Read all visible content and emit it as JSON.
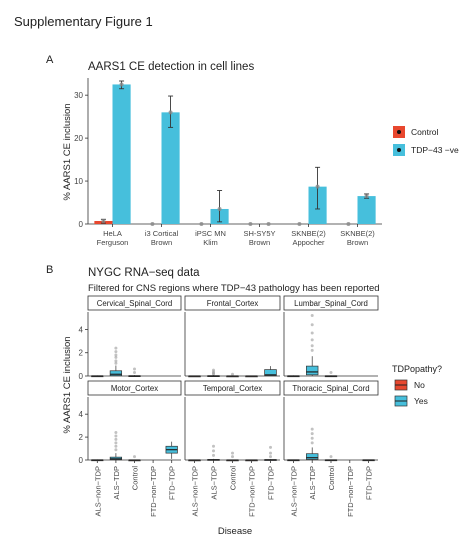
{
  "figure_title": "Supplementary Figure 1",
  "chart_data": [
    {
      "panel_label": "A",
      "type": "bar",
      "title": "AARS1 CE detection in cell lines",
      "ylabel": "% AARS1 CE inclusion",
      "xlabel": "",
      "ylim": [
        0,
        34
      ],
      "yticks": [
        0,
        10,
        20,
        30
      ],
      "categories": [
        "HeLA\nFerguson",
        "i3 Cortical\nBrown",
        "iPSC MN\nKlim",
        "SH-SY5Y\nBrown",
        "SKNBE(2)\nAppocher",
        "SKNBE(2)\nBrown"
      ],
      "legend_position": "right",
      "series": [
        {
          "name": "Control",
          "color": "#E8472E",
          "values": [
            0.7,
            0,
            0,
            0,
            0,
            0
          ],
          "error_low": [
            0.2,
            0,
            0,
            0,
            0,
            0
          ],
          "error_high": [
            1.1,
            0,
            0,
            0,
            0,
            0
          ]
        },
        {
          "name": "TDP−43 −ve",
          "color": "#46BFDC",
          "values": [
            32.5,
            26,
            3.5,
            0,
            8.7,
            6.5
          ],
          "error_low": [
            31.5,
            22.5,
            0.5,
            0,
            3.5,
            6.0
          ],
          "error_high": [
            33.3,
            29.8,
            7.8,
            0,
            13.2,
            7.0
          ]
        }
      ]
    },
    {
      "panel_label": "B",
      "type": "box",
      "title": "NYGC RNA−seq data",
      "subtitle": "Filtered for CNS regions where TDP−43 pathology has been reported",
      "ylabel": "% AARS1 CE inclusion",
      "xlabel": "Disease",
      "ylim": [
        0,
        5.5
      ],
      "yticks": [
        0,
        2,
        4
      ],
      "categories": [
        "ALS−non−TDP",
        "ALS−TDP",
        "Control",
        "FTD−non−TDP",
        "FTD−TDP"
      ],
      "legend_title": "TDPopathy?",
      "legend_position": "right",
      "groups": [
        {
          "name": "No",
          "color": "#E8472E"
        },
        {
          "name": "Yes",
          "color": "#46BFDC"
        }
      ],
      "facets": [
        {
          "name": "Cervical_Spinal_Cord",
          "boxes": [
            {
              "category": "ALS−non−TDP",
              "group": "No",
              "min": 0,
              "q1": 0,
              "median": 0,
              "q3": 0.02,
              "max": 0.05,
              "outliers": []
            },
            {
              "category": "ALS−TDP",
              "group": "Yes",
              "min": 0,
              "q1": 0.03,
              "median": 0.15,
              "q3": 0.45,
              "max": 0.9,
              "outliers": [
                1.1,
                1.3,
                1.6,
                1.8,
                2.1,
                2.4
              ]
            },
            {
              "category": "Control",
              "group": "No",
              "min": 0,
              "q1": 0,
              "median": 0,
              "q3": 0.03,
              "max": 0.08,
              "outliers": [
                0.3,
                0.6
              ]
            }
          ]
        },
        {
          "name": "Frontal_Cortex",
          "boxes": [
            {
              "category": "ALS−non−TDP",
              "group": "No",
              "min": 0,
              "q1": 0,
              "median": 0,
              "q3": 0.01,
              "max": 0.03,
              "outliers": []
            },
            {
              "category": "ALS−TDP",
              "group": "Yes",
              "min": 0,
              "q1": 0,
              "median": 0,
              "q3": 0.03,
              "max": 0.08,
              "outliers": [
                0.15,
                0.25,
                0.35,
                0.5
              ]
            },
            {
              "category": "Control",
              "group": "No",
              "min": 0,
              "q1": 0,
              "median": 0,
              "q3": 0.01,
              "max": 0.03,
              "outliers": [
                0.15
              ]
            },
            {
              "category": "FTD−non−TDP",
              "group": "No",
              "min": 0,
              "q1": 0,
              "median": 0,
              "q3": 0.01,
              "max": 0.02,
              "outliers": []
            },
            {
              "category": "FTD−TDP",
              "group": "Yes",
              "min": 0,
              "q1": 0.02,
              "median": 0.1,
              "q3": 0.55,
              "max": 0.85,
              "outliers": []
            }
          ]
        },
        {
          "name": "Lumbar_Spinal_Cord",
          "boxes": [
            {
              "category": "ALS−non−TDP",
              "group": "No",
              "min": 0,
              "q1": 0,
              "median": 0,
              "q3": 0.02,
              "max": 0.05,
              "outliers": []
            },
            {
              "category": "ALS−TDP",
              "group": "Yes",
              "min": 0,
              "q1": 0.1,
              "median": 0.35,
              "q3": 0.85,
              "max": 1.7,
              "outliers": [
                2.2,
                2.6,
                3.1,
                3.7,
                4.4,
                5.2
              ]
            },
            {
              "category": "Control",
              "group": "No",
              "min": 0,
              "q1": 0,
              "median": 0,
              "q3": 0.02,
              "max": 0.05,
              "outliers": [
                0.3
              ]
            }
          ]
        },
        {
          "name": "Motor_Cortex",
          "boxes": [
            {
              "category": "ALS−non−TDP",
              "group": "No",
              "min": 0,
              "q1": 0,
              "median": 0,
              "q3": 0.02,
              "max": 0.05,
              "outliers": []
            },
            {
              "category": "ALS−TDP",
              "group": "Yes",
              "min": 0,
              "q1": 0.02,
              "median": 0.1,
              "q3": 0.25,
              "max": 0.6,
              "outliers": [
                0.9,
                1.2,
                1.5,
                1.8,
                2.1,
                2.4
              ]
            },
            {
              "category": "Control",
              "group": "No",
              "min": 0,
              "q1": 0,
              "median": 0,
              "q3": 0.01,
              "max": 0.03,
              "outliers": [
                0.3
              ]
            },
            {
              "category": "FTD−TDP",
              "group": "Yes",
              "min": 0.1,
              "q1": 0.6,
              "median": 0.9,
              "q3": 1.2,
              "max": 1.6,
              "outliers": []
            }
          ]
        },
        {
          "name": "Temporal_Cortex",
          "boxes": [
            {
              "category": "ALS−non−TDP",
              "group": "No",
              "min": 0,
              "q1": 0,
              "median": 0,
              "q3": 0.01,
              "max": 0.03,
              "outliers": []
            },
            {
              "category": "ALS−TDP",
              "group": "Yes",
              "min": 0,
              "q1": 0,
              "median": 0.01,
              "q3": 0.05,
              "max": 0.1,
              "outliers": [
                0.4,
                0.8,
                1.2
              ]
            },
            {
              "category": "Control",
              "group": "No",
              "min": 0,
              "q1": 0,
              "median": 0,
              "q3": 0.01,
              "max": 0.03,
              "outliers": [
                0.3,
                0.6
              ]
            },
            {
              "category": "FTD−non−TDP",
              "group": "No",
              "min": 0,
              "q1": 0,
              "median": 0,
              "q3": 0.01,
              "max": 0.02,
              "outliers": []
            },
            {
              "category": "FTD−TDP",
              "group": "Yes",
              "min": 0,
              "q1": 0,
              "median": 0.01,
              "q3": 0.04,
              "max": 0.08,
              "outliers": [
                0.3,
                0.6,
                1.1
              ]
            }
          ]
        },
        {
          "name": "Thoracic_Spinal_Cord",
          "boxes": [
            {
              "category": "ALS−non−TDP",
              "group": "No",
              "min": 0,
              "q1": 0,
              "median": 0,
              "q3": 0.02,
              "max": 0.04,
              "outliers": []
            },
            {
              "category": "ALS−TDP",
              "group": "Yes",
              "min": 0,
              "q1": 0.05,
              "median": 0.2,
              "q3": 0.55,
              "max": 1.1,
              "outliers": [
                1.5,
                1.9,
                2.3,
                2.7
              ]
            },
            {
              "category": "Control",
              "group": "No",
              "min": 0,
              "q1": 0,
              "median": 0,
              "q3": 0.02,
              "max": 0.04,
              "outliers": [
                0.3
              ]
            },
            {
              "category": "FTD−TDP",
              "group": "Yes",
              "min": 0,
              "q1": 0,
              "median": 0,
              "q3": 0.02,
              "max": 0.04,
              "outliers": []
            }
          ]
        }
      ]
    }
  ]
}
